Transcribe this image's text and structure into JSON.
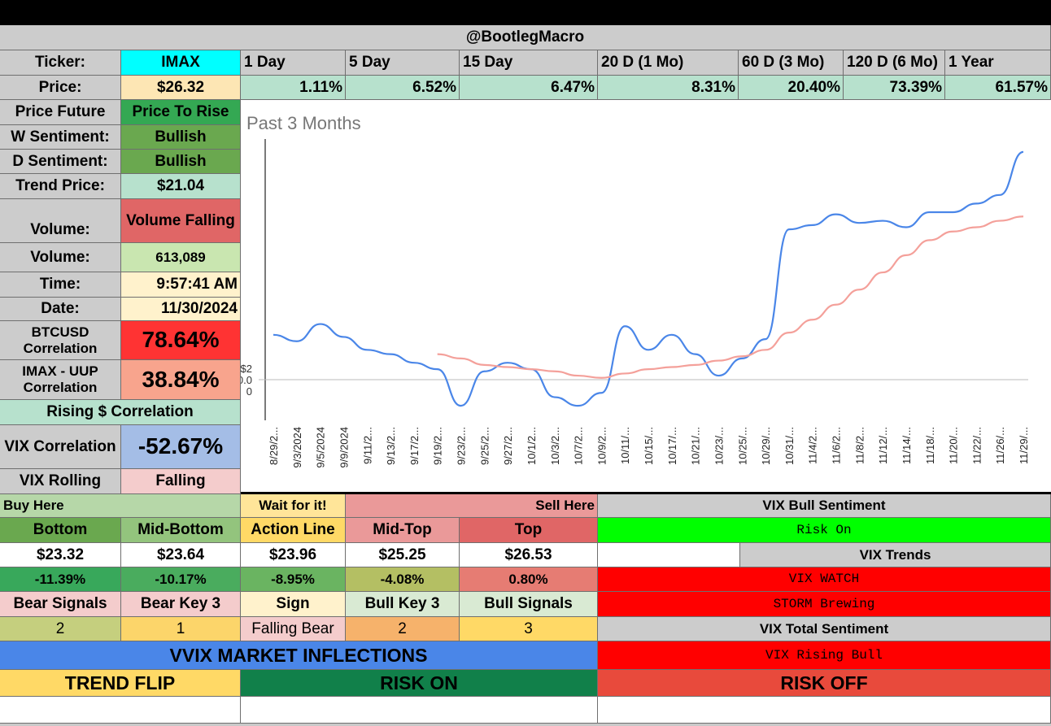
{
  "header": {
    "handle": "@BootlegMacro"
  },
  "ticker": {
    "label": "Ticker:",
    "value": "IMAX"
  },
  "price": {
    "label": "Price:",
    "value": "$26.32"
  },
  "periods": [
    {
      "label": "1 Day",
      "change": "1.11%"
    },
    {
      "label": "5 Day",
      "change": "6.52%"
    },
    {
      "label": "15 Day",
      "change": "6.47%"
    },
    {
      "label": "20 D (1 Mo)",
      "change": "8.31%"
    },
    {
      "label": "60 D (3 Mo)",
      "change": "20.40%"
    },
    {
      "label": "120 D (6 Mo)",
      "change": "73.39%"
    },
    {
      "label": "1 Year",
      "change": "61.57%"
    }
  ],
  "stats": {
    "price_future": {
      "label": "Price Future",
      "value": "Price To Rise"
    },
    "w_sentiment": {
      "label": "W Sentiment:",
      "value": "Bullish"
    },
    "d_sentiment": {
      "label": "D Sentiment:",
      "value": "Bullish"
    },
    "trend_price": {
      "label": "Trend Price:",
      "value": "$21.04"
    },
    "volume_trend": {
      "label": "Volume:",
      "value": "Volume Falling"
    },
    "volume": {
      "label": "Volume:",
      "value": "613,089"
    },
    "time": {
      "label": "Time:",
      "value": "9:57:41 AM"
    },
    "date": {
      "label": "Date:",
      "value": "11/30/2024"
    },
    "btc_corr": {
      "label": "BTCUSD Correlation",
      "value": "78.64%"
    },
    "uup_corr": {
      "label": "IMAX - UUP Correlation",
      "value": "38.84%"
    },
    "rising_corr": "Rising $ Correlation",
    "vix_corr": {
      "label": "VIX Correlation",
      "value": "-52.67%"
    },
    "vix_rolling": {
      "label": "VIX Rolling",
      "value": "Falling"
    }
  },
  "chart_data": {
    "type": "line",
    "title": "Past 3 Months",
    "y_tick_labels": [
      "$2",
      "0.0",
      "0"
    ],
    "x": [
      "8/29/2...",
      "9/3/2024",
      "9/5/2024",
      "9/9/2024",
      "9/11/2...",
      "9/13/2...",
      "9/17/2...",
      "9/19/2...",
      "9/23/2...",
      "9/25/2...",
      "9/27/2...",
      "10/1/2...",
      "10/3/2...",
      "10/7/2...",
      "10/9/2...",
      "10/11/...",
      "10/15/...",
      "10/17/...",
      "10/21/...",
      "10/23/...",
      "10/25/...",
      "10/29/...",
      "10/31/...",
      "11/4/2...",
      "11/6/2...",
      "11/8/2...",
      "11/12/...",
      "11/14/...",
      "11/18/...",
      "11/20/...",
      "11/22/...",
      "11/26/...",
      "11/29/..."
    ],
    "series": [
      {
        "name": "Price",
        "color": "#4a86e8",
        "values": [
          17.9,
          17.6,
          18.4,
          17.8,
          17.2,
          17.0,
          16.6,
          16.3,
          14.6,
          16.2,
          16.6,
          16.3,
          15.0,
          14.6,
          15.2,
          18.3,
          17.2,
          17.9,
          17.0,
          16.0,
          16.8,
          17.7,
          22.8,
          23.0,
          23.5,
          23.1,
          23.2,
          22.9,
          23.6,
          23.6,
          24.0,
          24.4,
          26.4
        ]
      },
      {
        "name": "Trend",
        "color": "#f4a09a",
        "values": [
          null,
          null,
          null,
          null,
          null,
          null,
          null,
          17.0,
          16.8,
          16.5,
          16.4,
          16.3,
          16.2,
          16.0,
          15.9,
          16.1,
          16.3,
          16.4,
          16.5,
          16.7,
          16.9,
          17.2,
          18.0,
          18.6,
          19.3,
          20.0,
          20.8,
          21.6,
          22.3,
          22.7,
          22.9,
          23.2,
          23.4
        ]
      }
    ],
    "ylim": [
      14,
      27
    ]
  },
  "levels": {
    "buy_here": "Buy Here",
    "wait": "Wait for it!",
    "sell_here": "Sell Here",
    "headers": [
      "Bottom",
      "Mid-Bottom",
      "Action Line",
      "Mid-Top",
      "Top"
    ],
    "prices": [
      "$23.32",
      "$23.64",
      "$23.96",
      "$25.25",
      "$26.53"
    ],
    "pcts": [
      "-11.39%",
      "-10.17%",
      "-8.95%",
      "-4.08%",
      "0.80%"
    ],
    "signal_headers": [
      "Bear Signals",
      "Bear Key 3",
      "Sign",
      "Bull Key 3",
      "Bull Signals"
    ],
    "signal_values": [
      "2",
      "1",
      "Falling Bear",
      "2",
      "3"
    ]
  },
  "vix": {
    "bull_sentiment": "VIX Bull Sentiment",
    "risk_on": "Risk On",
    "trends": "VIX Trends",
    "watch": "VIX WATCH",
    "storm": "STORM Brewing",
    "total": "VIX Total Sentiment",
    "rising_bull": "VIX Rising Bull"
  },
  "vvix": {
    "title": "VVIX MARKET INFLECTIONS",
    "trend_flip": "TREND FLIP",
    "risk_on": "RISK ON",
    "risk_off": "RISK OFF"
  },
  "colors": {
    "cyan": "#00ffff",
    "tan": "#fde6b4",
    "mint": "#b7e1cd",
    "green": "#6aa84f",
    "red": "#ff3333",
    "salmon": "#f8a48d",
    "blue_grey": "#a4bde6",
    "pink": "#f4cccc",
    "lime": "#00ff00",
    "vix_red": "#ff0000",
    "vvix_blue": "#4a86e8",
    "dark_green": "#11804a",
    "risk_red": "#e84a3c",
    "gold": "#ffd966"
  }
}
